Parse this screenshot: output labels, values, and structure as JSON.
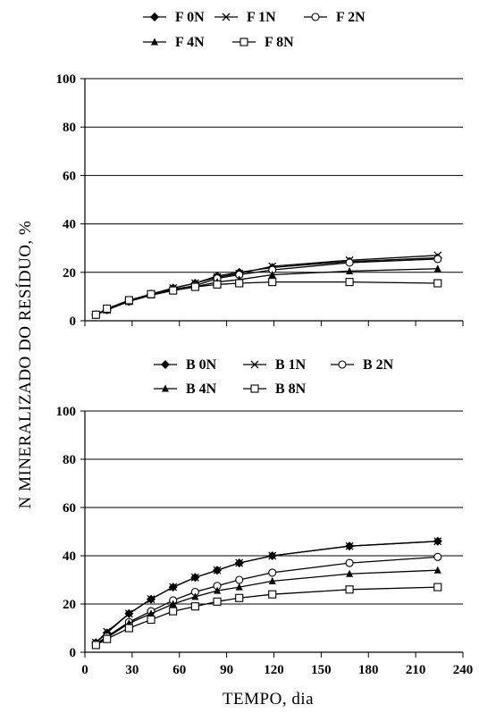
{
  "chart_data": [
    {
      "type": "line",
      "ylabel": "N MINERALIZADO DO RESÍDUO, %",
      "xlabel": "TEMPO, dia",
      "xlim": [
        0,
        240
      ],
      "ylim": [
        0,
        100
      ],
      "yticks": [
        "0",
        "20",
        "40",
        "60",
        "80",
        "100"
      ],
      "xticks": [],
      "grid": "horizontal",
      "legend": "top",
      "x": [
        7,
        14,
        28,
        42,
        56,
        70,
        84,
        98,
        119,
        168,
        224
      ],
      "series": [
        {
          "name": "F 0N",
          "marker": "diamond",
          "values": [
            2.5,
            4.5,
            8,
            11,
            13.5,
            15.5,
            18.5,
            20,
            22,
            24.5,
            26
          ]
        },
        {
          "name": "F 1N",
          "marker": "x",
          "values": [
            2.5,
            4.5,
            8,
            11,
            13.5,
            15.5,
            18,
            19.5,
            22.5,
            25,
            27
          ]
        },
        {
          "name": "F 2N",
          "marker": "circle",
          "values": [
            2.5,
            4.5,
            8,
            11,
            13,
            14.5,
            17.5,
            19,
            21,
            24,
            25.5
          ]
        },
        {
          "name": "F 4N",
          "marker": "triangle",
          "values": [
            2.5,
            4.5,
            8,
            10.5,
            12.5,
            14,
            16,
            17,
            19,
            20.5,
            21.5
          ]
        },
        {
          "name": "F 8N",
          "marker": "square",
          "values": [
            2.5,
            5,
            8.5,
            11,
            12.5,
            14,
            15,
            15.5,
            16,
            16,
            15.5
          ]
        }
      ]
    },
    {
      "type": "line",
      "ylabel": "",
      "xlabel": "TEMPO, dia",
      "xlim": [
        0,
        240
      ],
      "ylim": [
        0,
        100
      ],
      "yticks": [
        "0",
        "20",
        "40",
        "60",
        "80",
        "100"
      ],
      "xticks": [
        "0",
        "30",
        "60",
        "90",
        "120",
        "150",
        "180",
        "210",
        "240"
      ],
      "grid": "horizontal",
      "legend": "top",
      "x": [
        7,
        14,
        28,
        42,
        56,
        70,
        84,
        98,
        119,
        168,
        224
      ],
      "series": [
        {
          "name": "B 0N",
          "marker": "diamond",
          "values": [
            4,
            8,
            16,
            22,
            27,
            31,
            34,
            37,
            40,
            44,
            46
          ]
        },
        {
          "name": "B 1N",
          "marker": "x",
          "values": [
            4,
            8.5,
            16,
            22,
            27,
            31,
            34,
            37,
            40,
            44,
            46
          ]
        },
        {
          "name": "B 2N",
          "marker": "circle",
          "values": [
            3.5,
            6.5,
            12.5,
            17,
            21.5,
            25,
            27.5,
            30,
            33,
            37,
            39.5
          ]
        },
        {
          "name": "B 4N",
          "marker": "triangle",
          "values": [
            3.5,
            6,
            12,
            16,
            20,
            23,
            25.5,
            27,
            29.5,
            32.5,
            34
          ]
        },
        {
          "name": "B 8N",
          "marker": "square",
          "values": [
            3,
            5.5,
            10,
            13.5,
            17,
            19,
            21,
            22.5,
            24,
            26,
            27
          ]
        }
      ]
    }
  ]
}
